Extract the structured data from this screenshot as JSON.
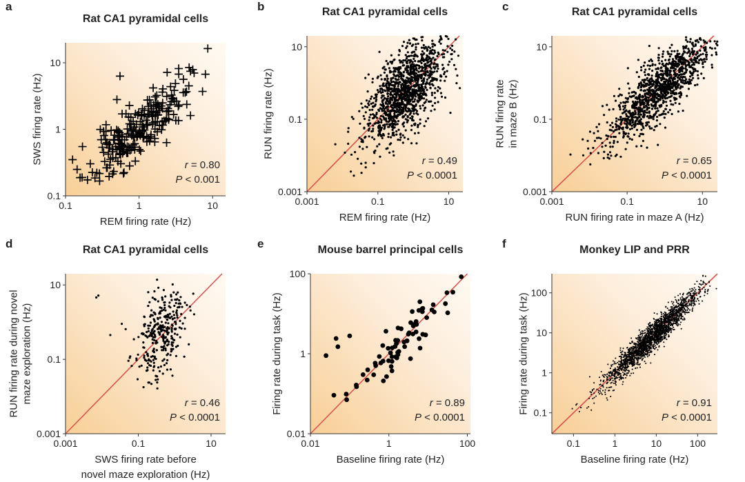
{
  "figure": {
    "colors": {
      "background_warm": "#f8cf96",
      "background_light": "#fffaf2",
      "identity_line": "#d9534f",
      "points": "#000000",
      "text": "#222222"
    }
  },
  "chart_data": [
    {
      "id": "a",
      "letter": "a",
      "type": "scatter",
      "marker": "plus",
      "title": "Rat CA1 pyramidal cells",
      "xlabel": [
        "REM firing rate (Hz)"
      ],
      "ylabel": [
        "SWS firing rate (Hz)"
      ],
      "xscale": "log",
      "yscale": "log",
      "xlim": [
        0.1,
        15
      ],
      "ylim": [
        0.1,
        20
      ],
      "xticks": [
        {
          "v": 0.1,
          "label": "0.1"
        },
        {
          "v": 1,
          "label": "1"
        },
        {
          "v": 10,
          "label": "10"
        }
      ],
      "yticks": [
        {
          "v": 0.1,
          "label": "0.1"
        },
        {
          "v": 1,
          "label": "1"
        },
        {
          "v": 10,
          "label": "10"
        }
      ],
      "identity_line": false,
      "stat": {
        "r_label": "r",
        "r_value": " = 0.80",
        "p_label": "P",
        "p_value": " < 0.001"
      },
      "points": {
        "count": 230,
        "center": 0.95,
        "log_sd": 0.33,
        "scatter_sd": 0.21,
        "slope": 0.9,
        "seed": 11,
        "extra": [
          [
            0.55,
            6.3
          ],
          [
            0.17,
            0.55
          ],
          [
            0.33,
            0.45
          ],
          [
            0.5,
            2.8
          ]
        ]
      }
    },
    {
      "id": "b",
      "letter": "b",
      "type": "scatter",
      "marker": "dot",
      "title": "Rat CA1 pyramidal cells",
      "xlabel": [
        "REM firing rate (Hz)"
      ],
      "ylabel": [
        "RUN firing rate (Hz)"
      ],
      "xscale": "log",
      "yscale": "log",
      "xlim": [
        0.001,
        25
      ],
      "ylim": [
        0.001,
        20
      ],
      "xticks": [
        {
          "v": 0.001,
          "label": "0.001"
        },
        {
          "v": 0.1,
          "label": "0.1"
        },
        {
          "v": 10,
          "label": "10"
        }
      ],
      "yticks": [
        {
          "v": 0.001,
          "label": "0.001"
        },
        {
          "v": 0.1,
          "label": "0.1"
        },
        {
          "v": 10,
          "label": "10"
        }
      ],
      "identity_line": true,
      "stat": {
        "r_label": "r",
        "r_value": " = 0.49",
        "p_label": "P",
        "p_value": " < 0.0001"
      },
      "points": {
        "count": 1300,
        "center": 0.55,
        "log_sd": 0.55,
        "scatter_sd": 0.55,
        "slope": 0.75,
        "seed": 23,
        "extra": []
      }
    },
    {
      "id": "c",
      "letter": "c",
      "type": "scatter",
      "marker": "dot",
      "title": "Rat CA1 pyramidal cells",
      "xlabel": [
        "RUN firing rate in maze A (Hz)"
      ],
      "ylabel": [
        "RUN firing rate",
        "in maze B (Hz)"
      ],
      "xscale": "log",
      "yscale": "log",
      "xlim": [
        0.001,
        25
      ],
      "ylim": [
        0.001,
        20
      ],
      "xticks": [
        {
          "v": 0.001,
          "label": "0.001"
        },
        {
          "v": 0.1,
          "label": "0.1"
        },
        {
          "v": 10,
          "label": "10"
        }
      ],
      "yticks": [
        {
          "v": 0.001,
          "label": "0.001"
        },
        {
          "v": 0.1,
          "label": "0.1"
        },
        {
          "v": 10,
          "label": "10"
        }
      ],
      "identity_line": true,
      "stat": {
        "r_label": "r",
        "r_value": " = 0.65",
        "p_label": "P",
        "p_value": " < 0.0001"
      },
      "points": {
        "count": 1200,
        "center": 0.7,
        "log_sd": 0.7,
        "scatter_sd": 0.42,
        "slope": 0.9,
        "seed": 37,
        "extra": []
      }
    },
    {
      "id": "d",
      "letter": "d",
      "type": "scatter",
      "marker": "dot",
      "title": "Rat CA1 pyramidal cells",
      "xlabel": [
        "SWS firing rate before",
        "novel maze exploration  (Hz)"
      ],
      "ylabel": [
        "RUN firing rate during novel",
        "maze exploration (Hz)"
      ],
      "xscale": "log",
      "yscale": "log",
      "xlim": [
        0.001,
        25
      ],
      "ylim": [
        0.001,
        20
      ],
      "xticks": [
        {
          "v": 0.001,
          "label": "0.001"
        },
        {
          "v": 0.1,
          "label": "0.1"
        },
        {
          "v": 10,
          "label": "10"
        }
      ],
      "yticks": [
        {
          "v": 0.001,
          "label": "0.001"
        },
        {
          "v": 0.1,
          "label": "0.1"
        },
        {
          "v": 10,
          "label": "10"
        }
      ],
      "identity_line": true,
      "stat": {
        "r_label": "r",
        "r_value": " = 0.46",
        "p_label": "P",
        "p_value": " < 0.0001"
      },
      "points": {
        "count": 330,
        "center": 0.4,
        "log_sd": 0.32,
        "scatter_sd": 0.55,
        "slope": 0.8,
        "seed": 51,
        "extra": [
          [
            0.008,
            5.2
          ],
          [
            0.007,
            4.6
          ],
          [
            0.017,
            0.45
          ],
          [
            0.035,
            0.9
          ],
          [
            0.045,
            0.65
          ],
          [
            0.06,
            0.12
          ]
        ]
      }
    },
    {
      "id": "e",
      "letter": "e",
      "type": "scatter",
      "marker": "bigdot",
      "title": "Mouse barrel principal cells",
      "xlabel": [
        "Baseline firing rate (Hz)"
      ],
      "ylabel": [
        "Firing rate during task (Hz)"
      ],
      "xscale": "log",
      "yscale": "log",
      "xlim": [
        0.01,
        120
      ],
      "ylim": [
        0.01,
        100
      ],
      "xticks": [
        {
          "v": 0.01,
          "label": "0.01"
        },
        {
          "v": 1,
          "label": "1"
        },
        {
          "v": 100,
          "label": "100"
        }
      ],
      "yticks": [
        {
          "v": 0.01,
          "label": "0.01"
        },
        {
          "v": 1,
          "label": "1"
        },
        {
          "v": 100,
          "label": "100"
        }
      ],
      "identity_line": true,
      "stat": {
        "r_label": "r",
        "r_value": " = 0.89",
        "p_label": "P",
        "p_value": " < 0.0001"
      },
      "points": {
        "count": 70,
        "center": 2.2,
        "log_sd": 0.65,
        "scatter_sd": 0.25,
        "slope": 1.0,
        "seed": 67,
        "extra": [
          [
            0.025,
            0.9
          ],
          [
            0.045,
            2.4
          ],
          [
            0.05,
            1.5
          ],
          [
            0.1,
            2.8
          ],
          [
            0.22,
            0.3
          ],
          [
            0.28,
            0.22
          ]
        ]
      }
    },
    {
      "id": "f",
      "letter": "f",
      "type": "scatter",
      "marker": "tiny",
      "title": "Monkey LIP and PRR",
      "xlabel": [
        "Baseline firing rate (Hz)"
      ],
      "ylabel": [
        "Firing rate during task (Hz)"
      ],
      "xscale": "log",
      "yscale": "log",
      "xlim": [
        0.03,
        300
      ],
      "ylim": [
        0.03,
        300
      ],
      "xticks": [
        {
          "v": 0.1,
          "label": "0.1"
        },
        {
          "v": 1,
          "label": "1"
        },
        {
          "v": 10,
          "label": "10"
        },
        {
          "v": 100,
          "label": "100"
        }
      ],
      "yticks": [
        {
          "v": 0.1,
          "label": "0.1"
        },
        {
          "v": 1,
          "label": "1"
        },
        {
          "v": 10,
          "label": "10"
        },
        {
          "v": 100,
          "label": "100"
        }
      ],
      "identity_line": true,
      "stat": {
        "r_label": "r",
        "r_value": " = 0.91",
        "p_label": "P",
        "p_value": " < 0.0001"
      },
      "points": {
        "count": 2200,
        "center": 8,
        "log_sd": 0.55,
        "scatter_sd": 0.17,
        "slope": 1.0,
        "seed": 89,
        "extra": []
      }
    }
  ]
}
